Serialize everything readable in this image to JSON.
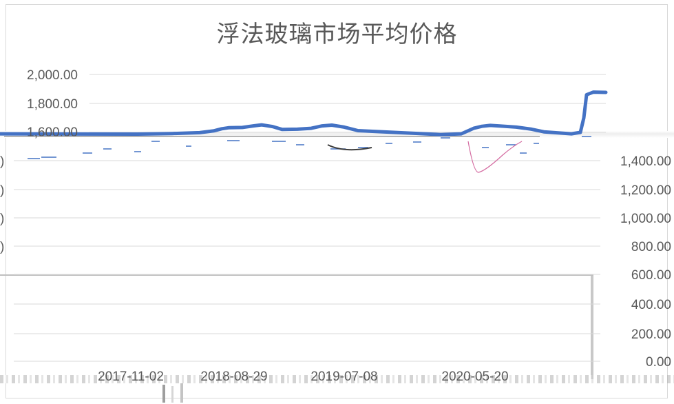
{
  "chart_data": {
    "type": "line",
    "title": "浮法玻璃市场平均价格",
    "xlabel": "",
    "ylabel": "",
    "y_ticks_left": [
      "2,000.00",
      "1,800.00",
      "1,600.00"
    ],
    "y_ticks_right": [
      "1,400.00",
      "1,200.00",
      "1,000.00",
      "800.00",
      "600.00",
      "400.00",
      "200.00",
      "0.00"
    ],
    "x_ticks": [
      "2017-11-02",
      "2018-08-29",
      "2019-07-08",
      "2020-05-20"
    ],
    "ylim": [
      0,
      2000
    ],
    "grid": true,
    "legend": "none",
    "series": [
      {
        "values": [
          [
            0,
            1590
          ],
          [
            200,
            1588
          ],
          [
            250,
            1592
          ],
          [
            290,
            1598
          ],
          [
            310,
            1610
          ],
          [
            322,
            1625
          ],
          [
            332,
            1632
          ],
          [
            352,
            1634
          ],
          [
            368,
            1645
          ],
          [
            380,
            1652
          ],
          [
            396,
            1640
          ],
          [
            410,
            1620
          ],
          [
            432,
            1622
          ],
          [
            452,
            1628
          ],
          [
            468,
            1645
          ],
          [
            482,
            1650
          ],
          [
            500,
            1636
          ],
          [
            520,
            1612
          ],
          [
            580,
            1598
          ],
          [
            640,
            1585
          ],
          [
            670,
            1590
          ],
          [
            688,
            1628
          ],
          [
            700,
            1642
          ],
          [
            712,
            1648
          ],
          [
            726,
            1644
          ],
          [
            750,
            1636
          ],
          [
            772,
            1622
          ],
          [
            790,
            1604
          ],
          [
            830,
            1590
          ],
          [
            843,
            1600
          ],
          [
            848,
            1700
          ],
          [
            852,
            1860
          ],
          [
            862,
            1878
          ],
          [
            880,
            1876
          ]
        ],
        "color": "#4472c4"
      }
    ]
  }
}
